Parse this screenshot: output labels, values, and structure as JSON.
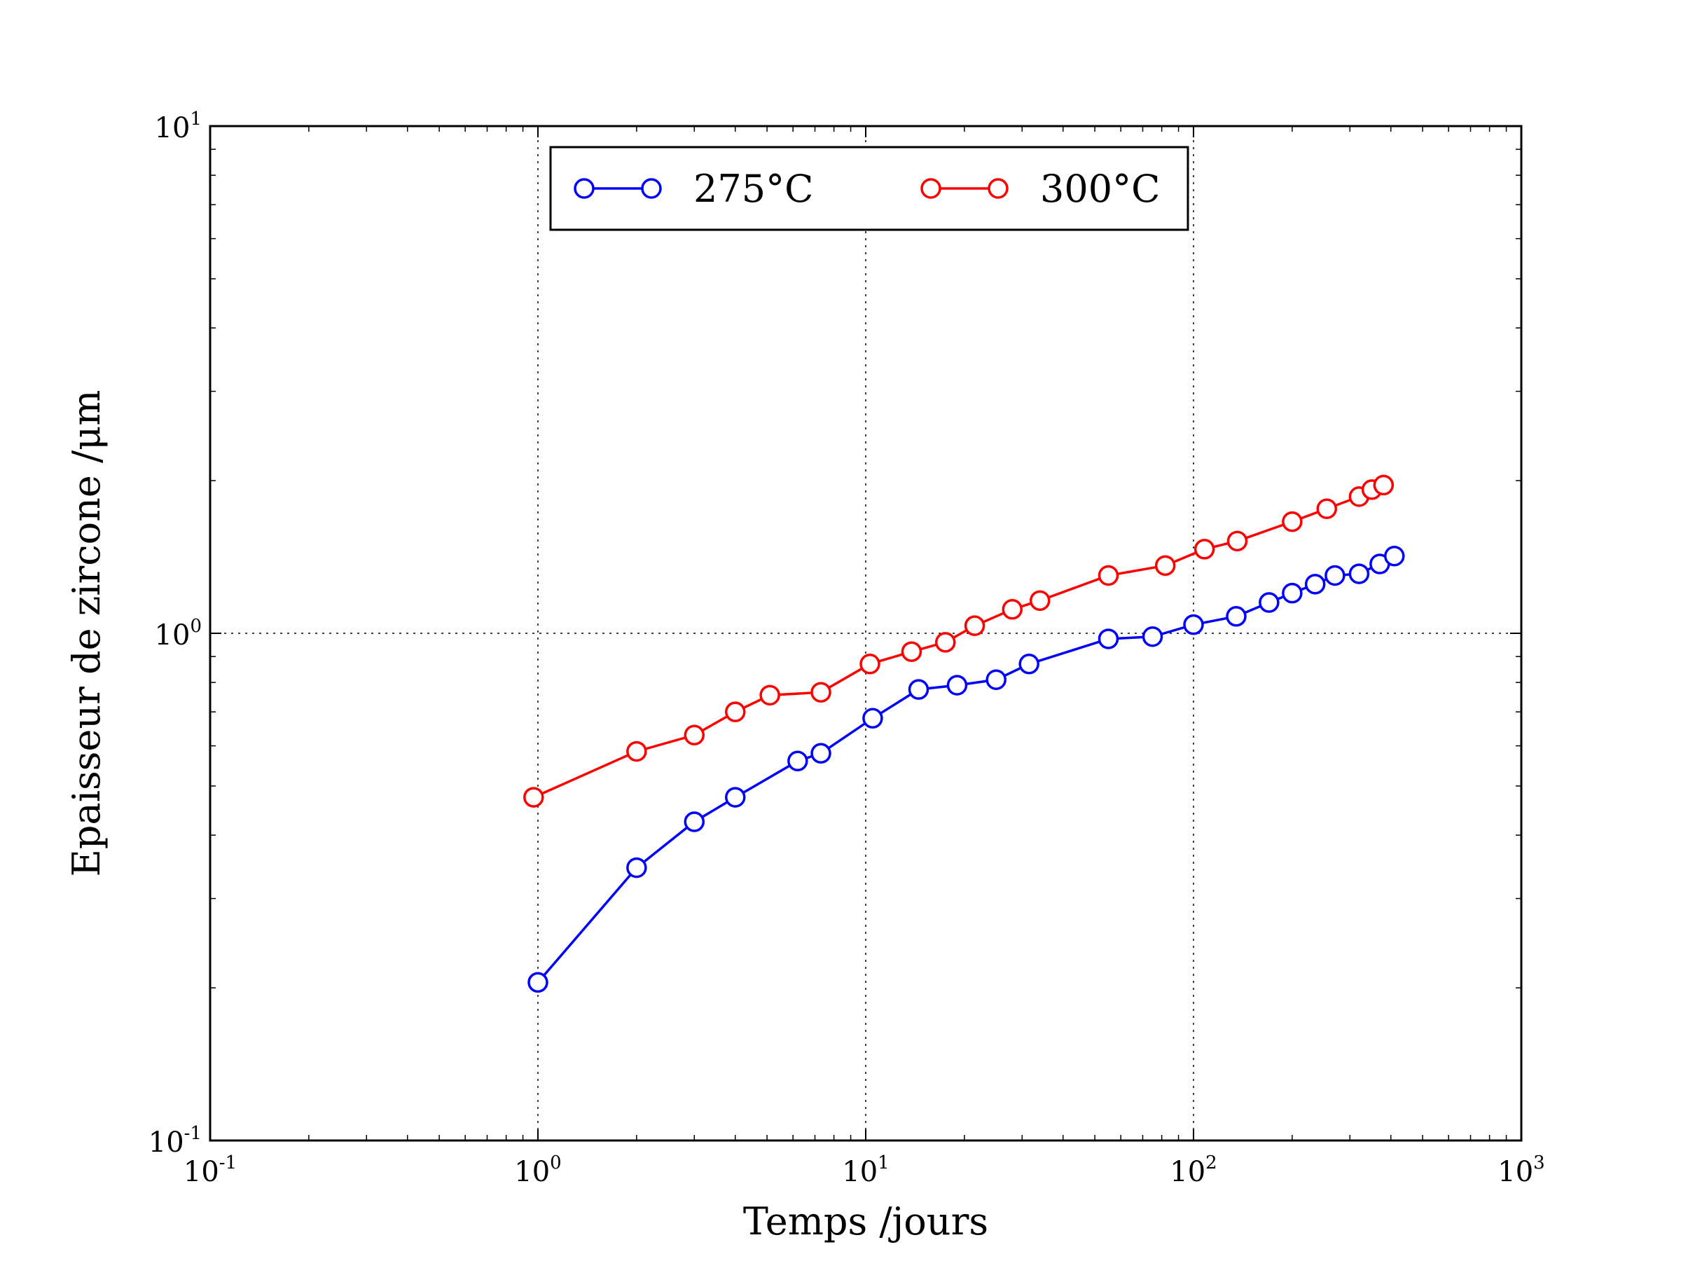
{
  "chart_data": {
    "type": "line",
    "xlabel": "Temps /jours",
    "ylabel": "Epaisseur de zircone /μm",
    "xscale": "log",
    "yscale": "log",
    "xlim": [
      0.1,
      1000
    ],
    "ylim": [
      0.1,
      10
    ],
    "grid": "dotted at major decades",
    "legend_position": "top-center",
    "x_ticks": [
      {
        "base": "10",
        "exp": "-1",
        "value": 0.1
      },
      {
        "base": "10",
        "exp": "0",
        "value": 1
      },
      {
        "base": "10",
        "exp": "1",
        "value": 10
      },
      {
        "base": "10",
        "exp": "2",
        "value": 100
      },
      {
        "base": "10",
        "exp": "3",
        "value": 1000
      }
    ],
    "y_ticks": [
      {
        "base": "10",
        "exp": "-1",
        "value": 0.1
      },
      {
        "base": "10",
        "exp": "0",
        "value": 1
      },
      {
        "base": "10",
        "exp": "1",
        "value": 10
      }
    ],
    "series": [
      {
        "name": "275°C",
        "color": "#0000ff",
        "marker": "open-circle",
        "x": [
          1,
          2,
          3,
          4,
          6.2,
          7.3,
          10.5,
          14.5,
          19,
          25,
          31.5,
          55,
          75,
          100,
          135,
          170,
          200,
          235,
          270,
          320,
          370,
          410
        ],
        "y": [
          0.205,
          0.345,
          0.425,
          0.475,
          0.56,
          0.58,
          0.68,
          0.775,
          0.79,
          0.81,
          0.87,
          0.975,
          0.985,
          1.04,
          1.08,
          1.15,
          1.2,
          1.25,
          1.3,
          1.31,
          1.37,
          1.42
        ]
      },
      {
        "name": "300°C",
        "color": "#ff0000",
        "marker": "open-circle",
        "x": [
          0.97,
          2,
          3,
          4,
          5.1,
          7.3,
          10.3,
          13.8,
          17.5,
          21.5,
          28,
          34,
          55,
          82,
          108,
          136,
          200,
          255,
          320,
          350,
          380
        ],
        "y": [
          0.475,
          0.585,
          0.63,
          0.7,
          0.755,
          0.765,
          0.87,
          0.92,
          0.96,
          1.035,
          1.115,
          1.16,
          1.3,
          1.36,
          1.465,
          1.52,
          1.66,
          1.76,
          1.86,
          1.92,
          1.96
        ]
      }
    ]
  }
}
